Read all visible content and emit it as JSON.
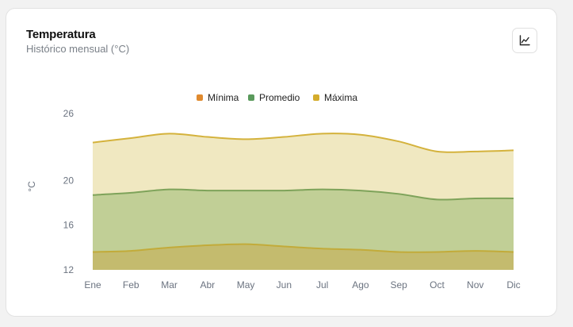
{
  "card": {
    "title": "Temperatura",
    "subtitle": "Histórico mensual (°C)",
    "icon": "line-chart-icon"
  },
  "chart_data": {
    "type": "area",
    "title": "Temperatura",
    "subtitle": "Histórico mensual (°C)",
    "ylabel": "°C",
    "xlabel": "",
    "categories": [
      "Ene",
      "Feb",
      "Mar",
      "Abr",
      "May",
      "Jun",
      "Jul",
      "Ago",
      "Sep",
      "Oct",
      "Nov",
      "Dic"
    ],
    "yticks": [
      12,
      16,
      20,
      26
    ],
    "ylim": [
      12,
      26
    ],
    "grid": false,
    "legend": "top",
    "series": [
      {
        "name": "Mínima",
        "color": "#e08a2e",
        "fill": "#c4bb6e",
        "line": "#c2ab3a",
        "values": [
          13.6,
          13.7,
          14.0,
          14.2,
          14.3,
          14.1,
          13.9,
          13.8,
          13.6,
          13.6,
          13.7,
          13.6
        ]
      },
      {
        "name": "Promedio",
        "color": "#5a9a5c",
        "fill": "#c1cf96",
        "line": "#7ea35a",
        "values": [
          18.7,
          18.9,
          19.2,
          19.1,
          19.1,
          19.1,
          19.2,
          19.1,
          18.8,
          18.3,
          18.4,
          18.4
        ]
      },
      {
        "name": "Máxima",
        "color": "#d4ac2c",
        "fill": "#f0e8c1",
        "line": "#d4b23c",
        "values": [
          23.4,
          23.8,
          24.2,
          23.9,
          23.7,
          23.9,
          24.2,
          24.1,
          23.5,
          22.6,
          22.6,
          22.7
        ]
      }
    ]
  }
}
